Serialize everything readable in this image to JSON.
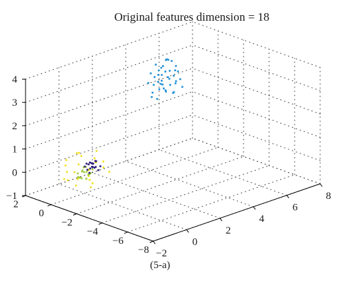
{
  "chart_data": {
    "type": "scatter",
    "projection": "3d",
    "title": "Original features dimension = 18",
    "caption": "(5-a)",
    "grid": true,
    "box": false,
    "xlim": [
      -2,
      8
    ],
    "ylim": [
      -8,
      2
    ],
    "zlim": [
      -1,
      4
    ],
    "x_ticks": [
      "−2",
      "0",
      "2",
      "4",
      "6",
      "8"
    ],
    "y_ticks": [
      "−8",
      "−6",
      "−4",
      "−2",
      "0",
      "2"
    ],
    "z_ticks": [
      "−1",
      "0",
      "1",
      "2",
      "3",
      "4"
    ],
    "colors": {
      "cluster_blue": "#1e90d8",
      "cluster_yellow": "#f0e020",
      "cluster_green": "#9ccb3c",
      "cluster_navy": "#2b1a7a",
      "axes": "#000000",
      "grid": "#444444"
    },
    "series": [
      {
        "color": "#1e90d8",
        "points": [
          [
            6.0,
            1.8,
            2.0
          ],
          [
            5.8,
            1.2,
            1.7
          ],
          [
            6.3,
            1.9,
            2.3
          ],
          [
            5.5,
            1.5,
            1.4
          ],
          [
            6.5,
            1.0,
            2.1
          ],
          [
            5.9,
            1.7,
            2.6
          ],
          [
            6.1,
            2.0,
            1.8
          ],
          [
            5.4,
            1.3,
            2.2
          ],
          [
            6.7,
            1.6,
            2.5
          ],
          [
            5.6,
            1.9,
            1.9
          ],
          [
            6.2,
            1.1,
            1.6
          ],
          [
            5.7,
            1.4,
            2.4
          ],
          [
            6.4,
            1.8,
            2.8
          ],
          [
            5.3,
            1.6,
            1.7
          ],
          [
            6.0,
            1.2,
            2.2
          ],
          [
            6.8,
            1.9,
            2.0
          ],
          [
            5.8,
            2.0,
            2.7
          ],
          [
            6.3,
            1.3,
            1.5
          ],
          [
            5.5,
            1.7,
            2.3
          ],
          [
            6.6,
            1.5,
            1.8
          ],
          [
            5.9,
            1.0,
            2.0
          ],
          [
            6.1,
            1.6,
            2.9
          ],
          [
            5.2,
            1.8,
            2.1
          ],
          [
            6.5,
            1.4,
            2.4
          ],
          [
            5.7,
            1.1,
            1.8
          ],
          [
            6.9,
            1.7,
            2.2
          ],
          [
            5.6,
            1.5,
            2.6
          ],
          [
            6.2,
            1.9,
            1.6
          ],
          [
            6.0,
            1.4,
            3.0
          ],
          [
            5.4,
            1.2,
            1.9
          ],
          [
            6.4,
            1.2,
            2.0
          ],
          [
            5.8,
            1.8,
            2.3
          ],
          [
            6.7,
            1.1,
            1.7
          ],
          [
            5.5,
            2.0,
            2.4
          ],
          [
            6.1,
            1.3,
            2.5
          ],
          [
            5.9,
            1.6,
            1.9
          ],
          [
            6.3,
            1.7,
            2.1
          ],
          [
            5.1,
            1.4,
            1.6
          ],
          [
            6.6,
            1.8,
            2.7
          ],
          [
            5.7,
            1.3,
            2.8
          ]
        ]
      },
      {
        "color": "#f0e020",
        "points": [
          [
            0.3,
            -0.4,
            0.5
          ],
          [
            -0.6,
            0.7,
            0.2
          ],
          [
            0.8,
            0.1,
            0.6
          ],
          [
            -0.3,
            -0.8,
            -0.2
          ],
          [
            0.5,
            0.9,
            0.3
          ],
          [
            -0.9,
            0.2,
            0.1
          ],
          [
            0.1,
            -0.5,
            -0.5
          ],
          [
            0.7,
            0.6,
            -0.3
          ],
          [
            -0.5,
            -0.2,
            0.4
          ],
          [
            0.2,
            0.8,
            -0.6
          ],
          [
            -0.8,
            -0.6,
            0.0
          ],
          [
            0.9,
            -0.3,
            0.2
          ],
          [
            -0.2,
            0.4,
            -0.7
          ],
          [
            0.6,
            -0.7,
            0.1
          ],
          [
            -0.7,
            0.5,
            0.5
          ],
          [
            0.4,
            0.2,
            -0.4
          ],
          [
            -0.4,
            -0.9,
            0.3
          ],
          [
            0.0,
            0.6,
            0.6
          ],
          [
            -1.0,
            0.0,
            -0.2
          ],
          [
            1.0,
            0.4,
            0.0
          ],
          [
            0.3,
            -0.1,
            -0.8
          ],
          [
            -0.6,
            0.8,
            -0.4
          ],
          [
            0.8,
            -0.9,
            -0.1
          ],
          [
            -0.1,
            0.3,
            0.7
          ],
          [
            0.5,
            0.5,
            -0.6
          ],
          [
            -0.9,
            -0.4,
            0.2
          ],
          [
            0.2,
            -0.6,
            0.4
          ],
          [
            -0.3,
            0.1,
            -0.3
          ]
        ]
      },
      {
        "color": "#9ccb3c",
        "points": [
          [
            -0.4,
            -0.5,
            0.1
          ],
          [
            -0.1,
            -0.3,
            0.0
          ],
          [
            -0.6,
            -0.6,
            0.2
          ],
          [
            0.0,
            -0.4,
            -0.1
          ],
          [
            -0.3,
            -0.7,
            0.0
          ],
          [
            -0.7,
            -0.4,
            0.1
          ],
          [
            -0.2,
            -0.2,
            0.2
          ],
          [
            -0.5,
            -0.8,
            -0.1
          ],
          [
            0.1,
            -0.5,
            0.1
          ],
          [
            -0.4,
            -0.3,
            -0.2
          ],
          [
            -0.8,
            -0.7,
            0.0
          ],
          [
            -0.3,
            -0.5,
            0.3
          ],
          [
            -0.6,
            -0.3,
            -0.1
          ],
          [
            -0.1,
            -0.6,
            0.0
          ],
          [
            -0.5,
            -0.5,
            0.2
          ]
        ]
      },
      {
        "color": "#2b1a7a",
        "points": [
          [
            0.3,
            -0.2,
            0.1
          ],
          [
            0.5,
            0.0,
            0.0
          ],
          [
            0.2,
            0.1,
            0.2
          ],
          [
            0.6,
            -0.3,
            -0.1
          ],
          [
            0.4,
            0.2,
            0.1
          ],
          [
            0.1,
            -0.1,
            0.0
          ],
          [
            0.7,
            0.0,
            0.2
          ],
          [
            0.3,
            -0.4,
            0.1
          ],
          [
            0.5,
            0.2,
            -0.1
          ],
          [
            0.2,
            -0.3,
            0.3
          ],
          [
            0.6,
            0.1,
            0.1
          ],
          [
            0.4,
            -0.1,
            0.2
          ],
          [
            0.8,
            -0.2,
            0.0
          ],
          [
            0.3,
            0.0,
            -0.2
          ],
          [
            0.5,
            -0.2,
            0.3
          ],
          [
            0.1,
            0.1,
            0.1
          ],
          [
            0.6,
            -0.1,
            0.0
          ],
          [
            0.4,
            0.1,
            0.2
          ]
        ]
      }
    ]
  }
}
